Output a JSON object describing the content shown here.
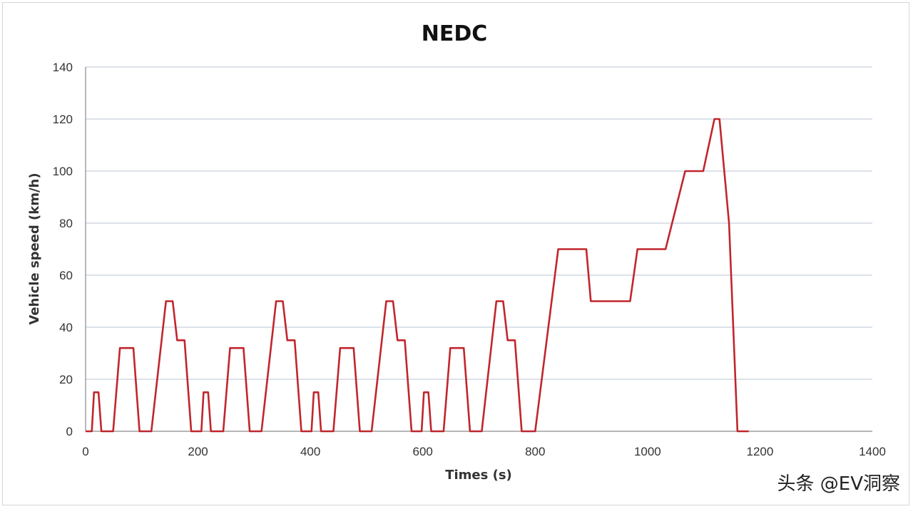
{
  "chart_data": {
    "type": "line",
    "title": "NEDC",
    "xlabel": "Times (s)",
    "ylabel": "Vehicle speed (km/h)",
    "xlim": [
      0,
      1400
    ],
    "ylim": [
      0,
      140
    ],
    "x_ticks": [
      "0",
      "200",
      "400",
      "600",
      "800",
      "1000",
      "1200",
      "1400"
    ],
    "y_ticks": [
      "0",
      "20",
      "40",
      "60",
      "80",
      "100",
      "120",
      "140"
    ],
    "grid": true,
    "legend": "none",
    "line_color": "#c0262c",
    "series": [
      {
        "x": [
          0,
          11,
          15,
          23,
          28,
          49,
          61,
          85,
          96,
          117,
          143,
          155,
          163,
          176,
          188,
          195,
          206,
          210,
          218,
          223,
          245,
          257,
          281,
          292,
          313,
          339,
          351,
          359,
          372,
          384,
          391,
          402,
          406,
          414,
          419,
          441,
          453,
          477,
          488,
          509,
          535,
          547,
          555,
          568,
          580,
          587,
          598,
          602,
          610,
          615,
          637,
          649,
          673,
          684,
          705,
          731,
          743,
          751,
          764,
          776,
          800,
          841,
          891,
          899,
          969,
          982,
          1032,
          1067,
          1099,
          1119,
          1128,
          1145,
          1160,
          1180
        ],
        "y": [
          0,
          0,
          15,
          15,
          0,
          0,
          32,
          32,
          0,
          0,
          50,
          50,
          35,
          35,
          0,
          0,
          0,
          15,
          15,
          0,
          0,
          32,
          32,
          0,
          0,
          50,
          50,
          35,
          35,
          0,
          0,
          0,
          15,
          15,
          0,
          0,
          32,
          32,
          0,
          0,
          50,
          50,
          35,
          35,
          0,
          0,
          0,
          15,
          15,
          0,
          0,
          32,
          32,
          0,
          0,
          50,
          50,
          35,
          35,
          0,
          0,
          70,
          70,
          50,
          50,
          70,
          70,
          100,
          100,
          120,
          120,
          80,
          0,
          0
        ]
      }
    ]
  },
  "watermark": "头条 @EV洞察"
}
